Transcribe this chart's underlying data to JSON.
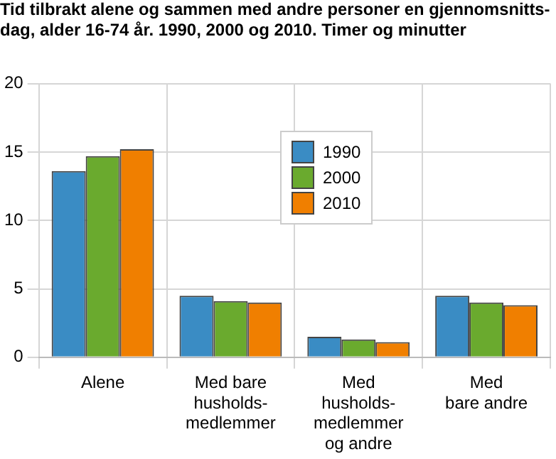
{
  "chart_data": {
    "type": "bar",
    "title": "Tid tilbrakt alene og sammen med andre personer en gjennomsnitts-\ndag, alder 16-74 år. 1990, 2000 og 2010. Timer og minutter",
    "categories": [
      "Alene",
      "Med bare\nhusholds-\nmedlemmer",
      "Med\nhusholds-\nmedlemmer\nog andre",
      "Med\nbare andre"
    ],
    "series": [
      {
        "name": "1990",
        "color": "#3a8cc4",
        "values": [
          13.6,
          4.5,
          1.5,
          4.5
        ]
      },
      {
        "name": "2000",
        "color": "#6aaa2e",
        "values": [
          14.7,
          4.1,
          1.3,
          4.0
        ]
      },
      {
        "name": "2010",
        "color": "#f07f00",
        "values": [
          15.2,
          4.0,
          1.1,
          3.8
        ]
      }
    ],
    "ylim": [
      0,
      20
    ],
    "yticks": [
      0,
      5,
      10,
      15,
      20
    ],
    "grid": true,
    "legend": "top"
  }
}
